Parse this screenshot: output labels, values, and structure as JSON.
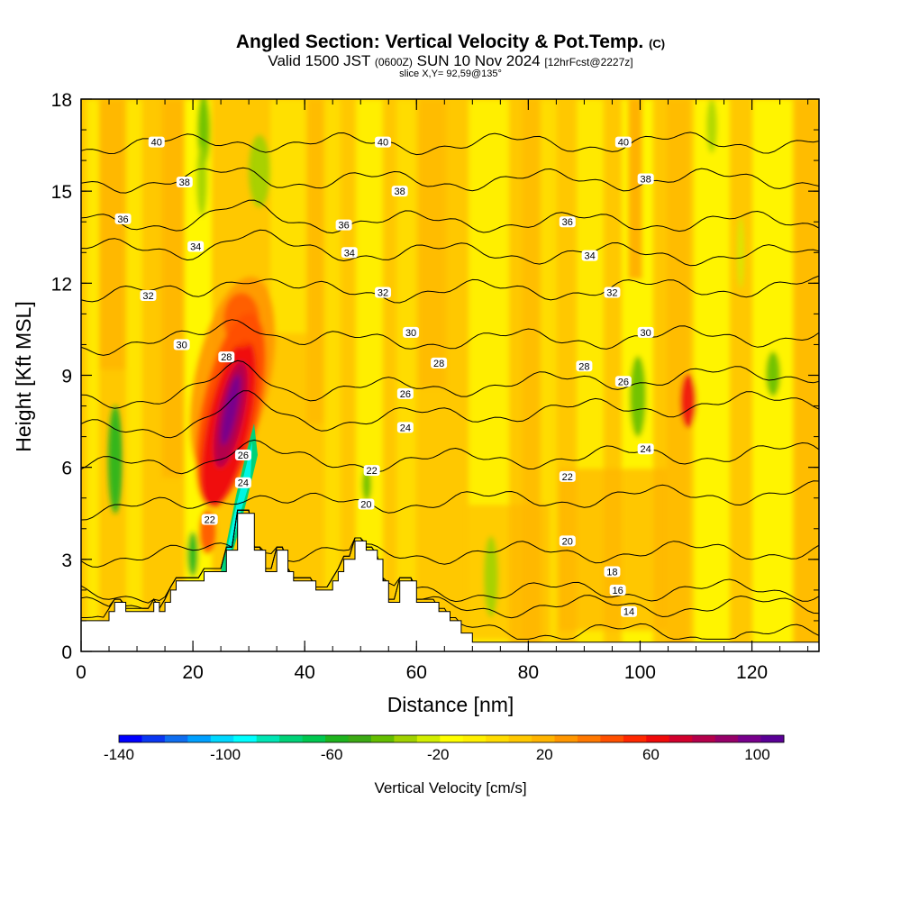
{
  "header": {
    "title": "Angled Section: Vertical Velocity & Pot.Temp.",
    "title_mark": "(C)",
    "valid_time": "Valid 1500 JST",
    "valid_utc": "(0600Z)",
    "valid_date": "SUN 10 Nov 2024",
    "forecast": "[12hrFcst@2227z]",
    "slice": "slice X,Y= 92,59@135°"
  },
  "chart_data": {
    "type": "heatmap",
    "xlabel": "Distance [nm]",
    "ylabel": "Height [Kft MSL]",
    "xlim": [
      0,
      132
    ],
    "ylim": [
      0,
      18
    ],
    "x_ticks": [
      "0",
      "20",
      "40",
      "60",
      "80",
      "100",
      "120"
    ],
    "y_ticks": [
      "0",
      "3",
      "6",
      "9",
      "12",
      "15",
      "18"
    ],
    "terrain": [
      [
        0,
        1
      ],
      [
        5,
        1
      ],
      [
        5,
        1.3
      ],
      [
        6,
        1.3
      ],
      [
        6,
        1.6
      ],
      [
        8,
        1.6
      ],
      [
        8,
        1.3
      ],
      [
        13,
        1.3
      ],
      [
        13,
        1.6
      ],
      [
        14,
        1.6
      ],
      [
        14,
        1.3
      ],
      [
        15,
        1.3
      ],
      [
        15,
        1.6
      ],
      [
        16,
        1.6
      ],
      [
        16,
        2
      ],
      [
        17,
        2
      ],
      [
        17,
        2.3
      ],
      [
        22,
        2.3
      ],
      [
        22,
        2.6
      ],
      [
        26,
        2.6
      ],
      [
        26,
        3.3
      ],
      [
        28,
        3.3
      ],
      [
        28,
        4.5
      ],
      [
        31,
        4.5
      ],
      [
        31,
        3.3
      ],
      [
        33,
        3.3
      ],
      [
        33,
        2.6
      ],
      [
        35,
        2.6
      ],
      [
        35,
        3.3
      ],
      [
        37,
        3.3
      ],
      [
        37,
        2.6
      ],
      [
        38,
        2.6
      ],
      [
        38,
        2.3
      ],
      [
        42,
        2.3
      ],
      [
        42,
        2
      ],
      [
        45,
        2
      ],
      [
        45,
        2.3
      ],
      [
        46,
        2.3
      ],
      [
        46,
        2.6
      ],
      [
        47,
        2.6
      ],
      [
        47,
        3
      ],
      [
        49,
        3
      ],
      [
        49,
        3.6
      ],
      [
        51,
        3.6
      ],
      [
        51,
        3.3
      ],
      [
        53,
        3.3
      ],
      [
        53,
        3
      ],
      [
        54,
        3
      ],
      [
        54,
        2.3
      ],
      [
        55,
        2.3
      ],
      [
        55,
        1.6
      ],
      [
        57,
        1.6
      ],
      [
        57,
        2.3
      ],
      [
        60,
        2.3
      ],
      [
        60,
        1.6
      ],
      [
        64,
        1.6
      ],
      [
        64,
        1.3
      ],
      [
        66,
        1.3
      ],
      [
        66,
        1
      ],
      [
        68,
        1
      ],
      [
        68,
        0.6
      ],
      [
        70,
        0.6
      ],
      [
        70,
        0.3
      ],
      [
        132,
        0.3
      ]
    ],
    "theta_contours": [
      {
        "label": "14",
        "y_left": 0.9,
        "y_right": 0.5
      },
      {
        "label": "16",
        "y_left": 1.4,
        "y_right": 1.5
      },
      {
        "label": "18",
        "y_left": 1.9,
        "y_right": 2.0
      },
      {
        "label": "20",
        "y_left": 3.1,
        "y_right": 3.3
      },
      {
        "label": "22",
        "y_left": 4.6,
        "y_right": 5.2
      },
      {
        "label": "24",
        "y_left": 6.0,
        "y_right": 6.5
      },
      {
        "label": "26",
        "y_left": 7.2,
        "y_right": 8.2
      },
      {
        "label": "28",
        "y_left": 8.2,
        "y_right": 9.1
      },
      {
        "label": "30",
        "y_left": 10.0,
        "y_right": 10.3
      },
      {
        "label": "32",
        "y_left": 11.6,
        "y_right": 11.9
      },
      {
        "label": "34",
        "y_left": 13.1,
        "y_right": 12.9
      },
      {
        "label": "36",
        "y_left": 14.0,
        "y_right": 14.0
      },
      {
        "label": "38",
        "y_left": 15.3,
        "y_right": 15.4
      },
      {
        "label": "40",
        "y_left": 16.5,
        "y_right": 16.6
      }
    ],
    "theta_labels": [
      {
        "text": "40",
        "x": 13.5,
        "y": 16.6
      },
      {
        "text": "40",
        "x": 54,
        "y": 16.6
      },
      {
        "text": "40",
        "x": 97,
        "y": 16.6
      },
      {
        "text": "38",
        "x": 18.5,
        "y": 15.3
      },
      {
        "text": "38",
        "x": 57,
        "y": 15.0
      },
      {
        "text": "38",
        "x": 101,
        "y": 15.4
      },
      {
        "text": "36",
        "x": 7.5,
        "y": 14.1
      },
      {
        "text": "36",
        "x": 47,
        "y": 13.9
      },
      {
        "text": "36",
        "x": 87,
        "y": 14.0
      },
      {
        "text": "34",
        "x": 20.5,
        "y": 13.2
      },
      {
        "text": "34",
        "x": 48,
        "y": 13.0
      },
      {
        "text": "34",
        "x": 91,
        "y": 12.9
      },
      {
        "text": "32",
        "x": 12,
        "y": 11.6
      },
      {
        "text": "32",
        "x": 54,
        "y": 11.7
      },
      {
        "text": "32",
        "x": 95,
        "y": 11.7
      },
      {
        "text": "30",
        "x": 18,
        "y": 10.0
      },
      {
        "text": "30",
        "x": 59,
        "y": 10.4
      },
      {
        "text": "30",
        "x": 101,
        "y": 10.4
      },
      {
        "text": "28",
        "x": 26,
        "y": 9.6
      },
      {
        "text": "28",
        "x": 64,
        "y": 9.4
      },
      {
        "text": "28",
        "x": 90,
        "y": 9.3
      },
      {
        "text": "26",
        "x": 58,
        "y": 8.4
      },
      {
        "text": "26",
        "x": 97,
        "y": 8.8
      },
      {
        "text": "24",
        "x": 58,
        "y": 7.3
      },
      {
        "text": "24",
        "x": 101,
        "y": 6.6
      },
      {
        "text": "22",
        "x": 52,
        "y": 5.9
      },
      {
        "text": "22",
        "x": 87,
        "y": 5.7
      },
      {
        "text": "20",
        "x": 51,
        "y": 4.8
      },
      {
        "text": "20",
        "x": 87,
        "y": 3.6
      },
      {
        "text": "18",
        "x": 95,
        "y": 2.6
      },
      {
        "text": "16",
        "x": 96,
        "y": 2.0
      },
      {
        "text": "14",
        "x": 98,
        "y": 1.3
      },
      {
        "text": "26",
        "x": 29,
        "y": 6.4
      },
      {
        "text": "24",
        "x": 29,
        "y": 5.5
      },
      {
        "text": "22",
        "x": 23,
        "y": 4.3
      }
    ],
    "colorbar": {
      "label": "Vertical Velocity [cm/s]",
      "tick_labels": [
        "-140",
        "-100",
        "-60",
        "-20",
        "20",
        "60",
        "100"
      ],
      "tick_values": [
        -140,
        -100,
        -60,
        -20,
        20,
        60,
        100
      ],
      "range": [
        -140,
        110
      ],
      "colors": [
        "#0000ff",
        "#0a37f2",
        "#0f6ef0",
        "#00a0ff",
        "#00d8ff",
        "#00ffff",
        "#00e6b4",
        "#00d278",
        "#00c850",
        "#1eb41e",
        "#3caa14",
        "#64be00",
        "#a0d200",
        "#d2ee00",
        "#ffff00",
        "#fff000",
        "#ffdc00",
        "#ffc800",
        "#ffb400",
        "#ff9600",
        "#ff7800",
        "#ff5000",
        "#ff2800",
        "#f00a0a",
        "#d2002d",
        "#b4004b",
        "#960069",
        "#78008c",
        "#5a0096"
      ]
    }
  }
}
